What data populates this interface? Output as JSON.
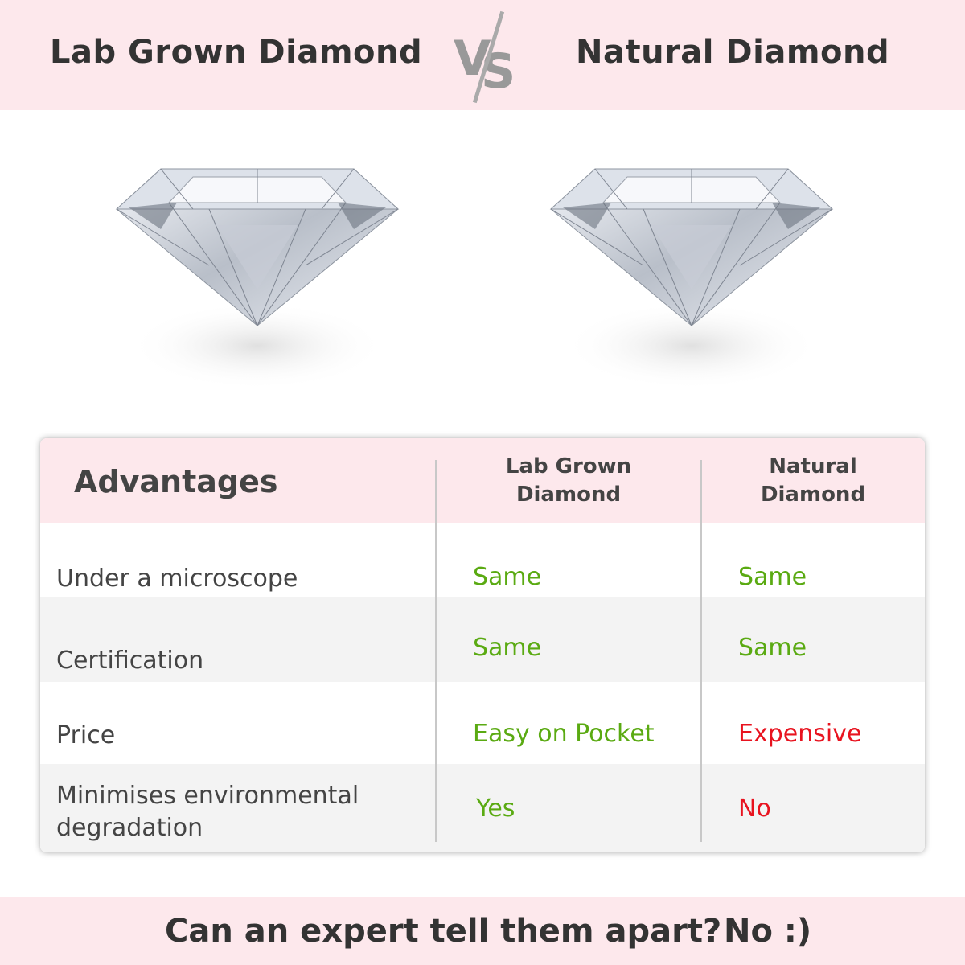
{
  "header": {
    "left_title": "Lab Grown Diamond",
    "vs_label": {
      "v": "V",
      "s": "S"
    },
    "right_title": "Natural Diamond"
  },
  "colors": {
    "pink_band": "#fde8ec",
    "green": "#5aaa12",
    "red": "#e8131f",
    "row_alt": "#f3f3f3"
  },
  "table": {
    "headers": [
      "Advantages",
      "Lab Grown\nDiamond",
      "Natural\nDiamond"
    ],
    "rows": [
      {
        "label": "Under a microscope",
        "lab": "Same",
        "natural": "Same",
        "lab_status": "green",
        "natural_status": "green"
      },
      {
        "label": "Certification",
        "lab": "Same",
        "natural": "Same",
        "lab_status": "green",
        "natural_status": "green"
      },
      {
        "label": "Price",
        "lab": "Easy on Pocket",
        "natural": "Expensive",
        "lab_status": "green",
        "natural_status": "red"
      },
      {
        "label": "Minimises environmental\ndegradation",
        "lab": "Yes",
        "natural": "No",
        "lab_status": "green",
        "natural_status": "red"
      }
    ]
  },
  "footer": {
    "question": "Can an expert tell them apart?",
    "answer": "No :)"
  }
}
